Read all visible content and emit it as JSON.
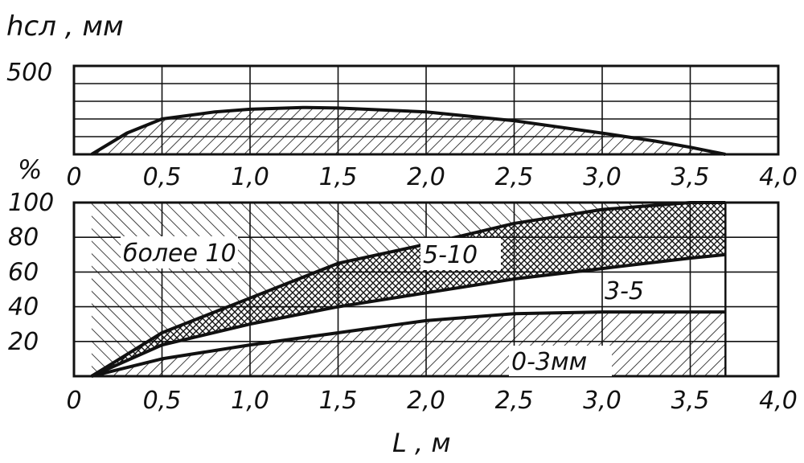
{
  "chart_data": [
    {
      "type": "area",
      "ylabel": "hсл , мм",
      "ytick_labels": [
        "500"
      ],
      "x_ticks": [
        "0",
        "0,5",
        "1,0",
        "1,5",
        "2,0",
        "2,5",
        "3,0",
        "3,5",
        "4,0"
      ],
      "xlim": [
        0,
        4.0
      ],
      "ylim": [
        0,
        500
      ],
      "grid": true,
      "series": [
        {
          "x": [
            0.1,
            0.3,
            0.5,
            0.8,
            1.0,
            1.3,
            1.5,
            2.0,
            2.5,
            3.0,
            3.3,
            3.5,
            3.7
          ],
          "y": [
            0,
            120,
            200,
            240,
            255,
            265,
            262,
            240,
            190,
            120,
            75,
            40,
            0
          ]
        }
      ]
    },
    {
      "type": "area",
      "ylabel": "%",
      "xlabel": "L , м",
      "ytick_labels": [
        "100",
        "80",
        "60",
        "40",
        "20"
      ],
      "x_ticks": [
        "0",
        "0,5",
        "1,0",
        "1,5",
        "2,0",
        "2,5",
        "3,0",
        "3,5",
        "4,0"
      ],
      "xlim": [
        0,
        4.0
      ],
      "ylim": [
        0,
        100
      ],
      "grid": true,
      "series": [
        {
          "name": "0-3мм",
          "x": [
            0.1,
            0.5,
            1.0,
            1.5,
            2.0,
            2.5,
            3.0,
            3.5,
            3.7
          ],
          "y": [
            0,
            10,
            18,
            25,
            32,
            36,
            37,
            37,
            37
          ]
        },
        {
          "name": "3-5",
          "x": [
            0.1,
            0.5,
            1.0,
            1.5,
            2.0,
            2.5,
            3.0,
            3.5,
            3.7
          ],
          "y": [
            0,
            18,
            30,
            40,
            48,
            56,
            62,
            68,
            70
          ]
        },
        {
          "name": "5-10",
          "x": [
            0.1,
            0.5,
            1.0,
            1.5,
            2.0,
            2.5,
            3.0,
            3.5,
            3.7
          ],
          "y": [
            0,
            25,
            45,
            65,
            76,
            88,
            96,
            100,
            100
          ]
        },
        {
          "name": "более 10",
          "x": [
            0.1,
            3.7
          ],
          "y": [
            100,
            100
          ]
        }
      ]
    }
  ]
}
